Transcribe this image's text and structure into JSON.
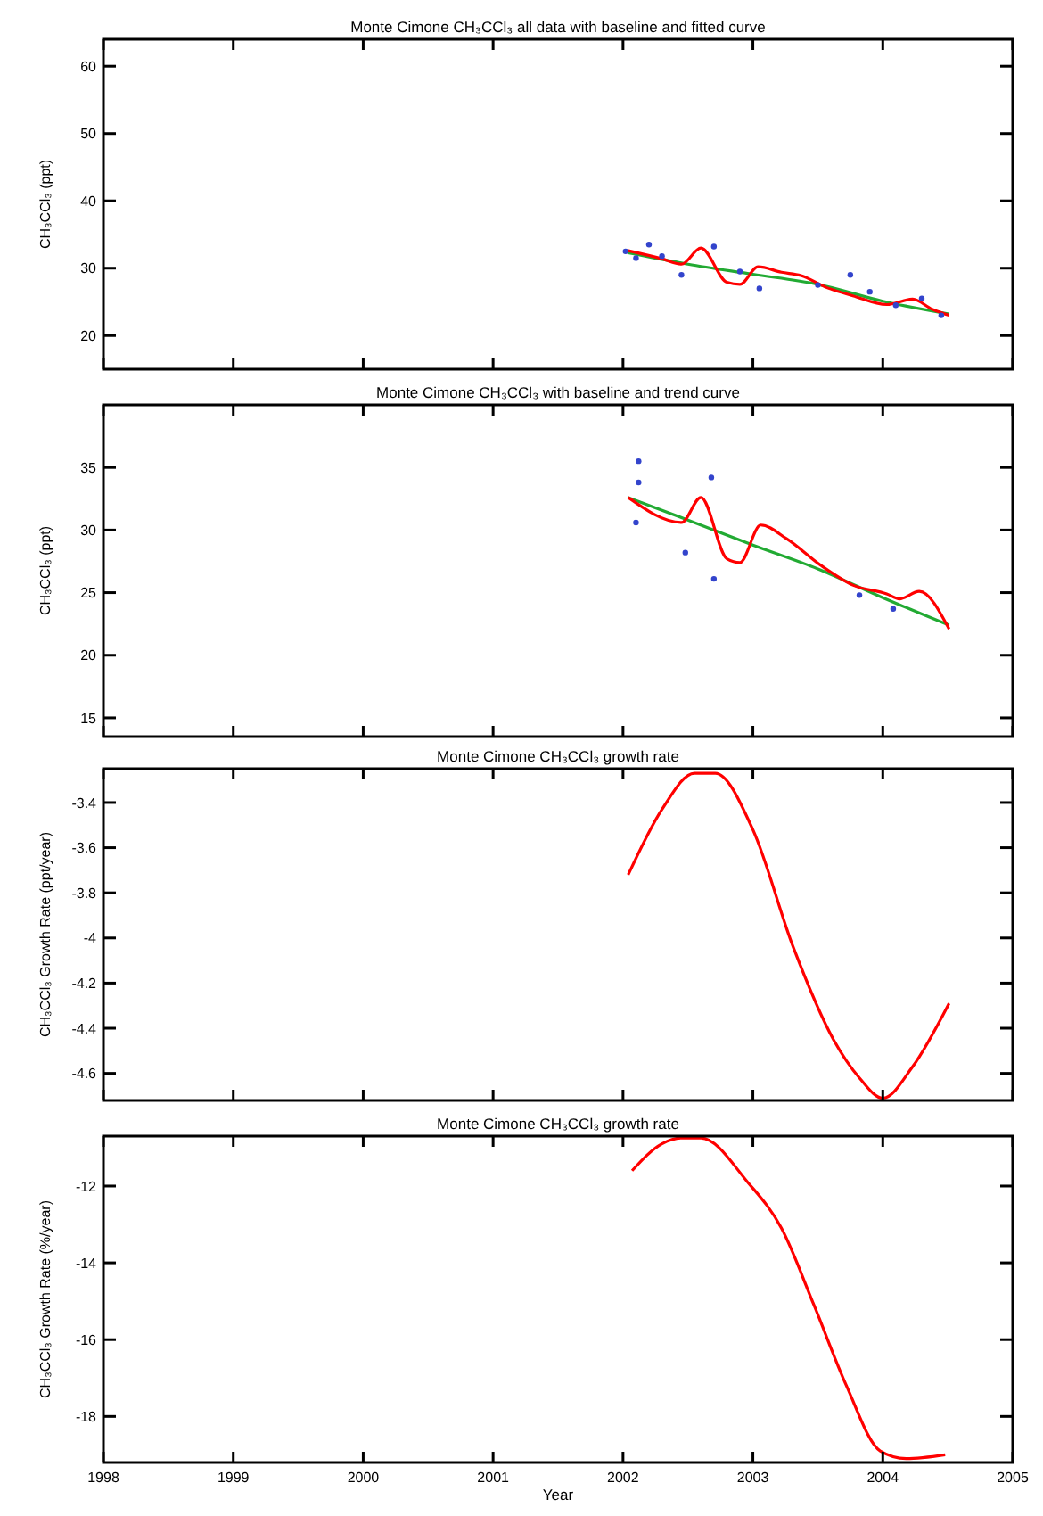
{
  "chart_data": [
    {
      "type": "line",
      "title": "Monte Cimone CH₃CCl₃ all data with baseline and fitted curve",
      "ylabel": "CH₃CCl₃ (ppt)",
      "xlim": [
        1998,
        2005
      ],
      "xticks": [
        1998,
        1999,
        2000,
        2001,
        2002,
        2003,
        2004,
        2005
      ],
      "ylim": [
        15,
        64
      ],
      "yticks": [
        20,
        30,
        40,
        50,
        60
      ],
      "tick_labels": "y",
      "grid": false,
      "series": [
        {
          "type": "scatter",
          "color": "#3344cc",
          "x": [
            2002.02,
            2002.1,
            2002.2,
            2002.3,
            2002.45,
            2002.7,
            2002.9,
            2003.05,
            2003.5,
            2003.75,
            2003.9,
            2004.1,
            2004.3,
            2004.45
          ],
          "values": [
            32.5,
            31.5,
            33.5,
            31.8,
            29,
            33.2,
            29.5,
            27,
            27.5,
            29,
            26.5,
            24.5,
            25.5,
            23
          ]
        },
        {
          "color": "#22aa33",
          "x": [
            2002.04,
            2002.5,
            2003.0,
            2003.5,
            2004.0,
            2004.51
          ],
          "values": [
            32.3,
            30.6,
            29.1,
            27.6,
            25.1,
            23.2
          ]
        },
        {
          "color": "#ff0000",
          "x": [
            2002.04,
            2002.3,
            2002.45,
            2002.6,
            2002.8,
            2002.9,
            2003.04,
            2003.22,
            2003.37,
            2003.57,
            2003.77,
            2004.03,
            2004.23,
            2004.38,
            2004.51
          ],
          "values": [
            32.6,
            31.4,
            30.6,
            33,
            27.9,
            27.6,
            30.2,
            29.4,
            28.9,
            27.1,
            25.9,
            24.6,
            25.4,
            23.9,
            23
          ]
        }
      ]
    },
    {
      "type": "line",
      "title": "Monte Cimone CH₃CCl₃ with baseline and trend curve",
      "ylabel": "CH₃CCl₃ (ppt)",
      "xlim": [
        1998,
        2005
      ],
      "xticks": [
        1998,
        1999,
        2000,
        2001,
        2002,
        2003,
        2004,
        2005
      ],
      "ylim": [
        13.5,
        40
      ],
      "yticks": [
        15,
        20,
        25,
        30,
        35
      ],
      "tick_labels": "y",
      "grid": false,
      "series": [
        {
          "type": "scatter",
          "color": "#3344cc",
          "x": [
            2002.12,
            2002.12,
            2002.1,
            2002.68,
            2002.48,
            2002.7,
            2003.82,
            2004.08
          ],
          "values": [
            35.5,
            33.8,
            30.6,
            34.2,
            28.2,
            26.1,
            24.8,
            23.7
          ]
        },
        {
          "color": "#22aa33",
          "x": [
            2002.04,
            2002.5,
            2003.0,
            2003.5,
            2004.0,
            2004.51
          ],
          "values": [
            32.6,
            30.8,
            28.8,
            26.9,
            24.6,
            22.4
          ]
        },
        {
          "color": "#ff0000",
          "x": [
            2002.04,
            2002.45,
            2002.6,
            2002.8,
            2002.9,
            2003.06,
            2003.26,
            2003.52,
            2003.77,
            2004.03,
            2004.13,
            2004.28,
            2004.51
          ],
          "values": [
            32.6,
            30.6,
            32.6,
            27.7,
            27.4,
            30.4,
            29.3,
            27.2,
            25.6,
            24.9,
            24.5,
            25.1,
            22.1
          ]
        }
      ]
    },
    {
      "type": "line",
      "title": "Monte Cimone CH₃CCl₃ growth rate",
      "ylabel": "CH₃CCl₃ Growth Rate (ppt/year)",
      "xlim": [
        1998,
        2005
      ],
      "xticks": [
        1998,
        1999,
        2000,
        2001,
        2002,
        2003,
        2004,
        2005
      ],
      "ylim": [
        -4.72,
        -3.25
      ],
      "yticks": [
        -3.4,
        -3.6,
        -3.8,
        -4.0,
        -4.2,
        -4.4,
        -4.6
      ],
      "tick_labels": "y",
      "grid": false,
      "series": [
        {
          "color": "#ff0000",
          "x": [
            2002.04,
            2002.3,
            2002.55,
            2002.71,
            2003.0,
            2003.31,
            2003.62,
            2003.82,
            2004.0,
            2004.23,
            2004.51
          ],
          "values": [
            -3.72,
            -3.43,
            -3.27,
            -3.27,
            -3.52,
            -4.04,
            -4.45,
            -4.62,
            -4.71,
            -4.57,
            -4.29
          ]
        }
      ]
    },
    {
      "type": "line",
      "title": "Monte Cimone CH₃CCl₃ growth rate",
      "xlabel": "Year",
      "ylabel": "CH₃CCl₃ Growth Rate (%/year)",
      "xlim": [
        1998,
        2005
      ],
      "xticks": [
        1998,
        1999,
        2000,
        2001,
        2002,
        2003,
        2004,
        2005
      ],
      "ylim": [
        -19.2,
        -10.7
      ],
      "yticks": [
        -12,
        -14,
        -16,
        -18
      ],
      "grid": false,
      "series": [
        {
          "color": "#ff0000",
          "x": [
            2002.07,
            2002.3,
            2002.45,
            2002.6,
            2002.96,
            2003.22,
            2003.47,
            2003.72,
            2003.98,
            2004.18,
            2004.48
          ],
          "values": [
            -11.6,
            -10.9,
            -10.75,
            -10.75,
            -11.9,
            -13.1,
            -15.1,
            -17.2,
            -18.9,
            -19.1,
            -19.0
          ]
        }
      ]
    }
  ]
}
